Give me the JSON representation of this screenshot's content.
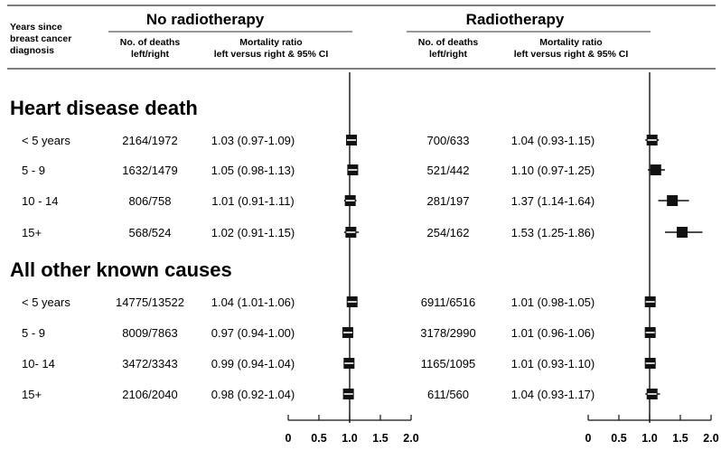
{
  "header": {
    "row_header": [
      "Years since",
      "breast cancer",
      "diagnosis"
    ],
    "left_group": "No radiotherapy",
    "right_group": "Radiotherapy",
    "deaths_header": [
      "No. of deaths",
      "left/right"
    ],
    "ratio_header": [
      "Mortality ratio",
      "left versus right & 95% CI"
    ]
  },
  "chart_data": {
    "type": "forest",
    "x_ticks": [
      "0",
      "0.5",
      "1.0",
      "1.5",
      "2.0"
    ],
    "xlim": [
      0,
      2.0
    ],
    "reference_line": 1.0,
    "sections": [
      {
        "title": "Heart disease death",
        "rows": [
          {
            "label": "< 5 years",
            "none": {
              "deaths": "2164/1972",
              "ratio_text": "1.03 (0.97-1.09)",
              "ratio": 1.03,
              "lo": 0.97,
              "hi": 1.09
            },
            "rt": {
              "deaths": "700/633",
              "ratio_text": "1.04 (0.93-1.15)",
              "ratio": 1.04,
              "lo": 0.93,
              "hi": 1.15
            }
          },
          {
            "label": "5 - 9",
            "none": {
              "deaths": "1632/1479",
              "ratio_text": "1.05 (0.98-1.13)",
              "ratio": 1.05,
              "lo": 0.98,
              "hi": 1.13
            },
            "rt": {
              "deaths": "521/442",
              "ratio_text": "1.10 (0.97-1.25)",
              "ratio": 1.1,
              "lo": 0.97,
              "hi": 1.25
            }
          },
          {
            "label": "10 - 14",
            "none": {
              "deaths": "806/758",
              "ratio_text": "1.01 (0.91-1.11)",
              "ratio": 1.01,
              "lo": 0.91,
              "hi": 1.11
            },
            "rt": {
              "deaths": "281/197",
              "ratio_text": "1.37 (1.14-1.64)",
              "ratio": 1.37,
              "lo": 1.14,
              "hi": 1.64
            }
          },
          {
            "label": "15+",
            "none": {
              "deaths": "568/524",
              "ratio_text": "1.02 (0.91-1.15)",
              "ratio": 1.02,
              "lo": 0.91,
              "hi": 1.15
            },
            "rt": {
              "deaths": "254/162",
              "ratio_text": "1.53 (1.25-1.86)",
              "ratio": 1.53,
              "lo": 1.25,
              "hi": 1.86
            }
          }
        ]
      },
      {
        "title": "All other known causes",
        "rows": [
          {
            "label": "< 5 years",
            "none": {
              "deaths": "14775/13522",
              "ratio_text": "1.04 (1.01-1.06)",
              "ratio": 1.04,
              "lo": 1.01,
              "hi": 1.06
            },
            "rt": {
              "deaths": "6911/6516",
              "ratio_text": "1.01 (0.98-1.05)",
              "ratio": 1.01,
              "lo": 0.98,
              "hi": 1.05
            }
          },
          {
            "label": "5 - 9",
            "none": {
              "deaths": "8009/7863",
              "ratio_text": "0.97 (0.94-1.00)",
              "ratio": 0.97,
              "lo": 0.94,
              "hi": 1.0
            },
            "rt": {
              "deaths": "3178/2990",
              "ratio_text": "1.01 (0.96-1.06)",
              "ratio": 1.01,
              "lo": 0.96,
              "hi": 1.06
            }
          },
          {
            "label": "10- 14",
            "none": {
              "deaths": "3472/3343",
              "ratio_text": "0.99 (0.94-1.04)",
              "ratio": 0.99,
              "lo": 0.94,
              "hi": 1.04
            },
            "rt": {
              "deaths": "1165/1095",
              "ratio_text": "1.01 (0.93-1.10)",
              "ratio": 1.01,
              "lo": 0.93,
              "hi": 1.1
            }
          },
          {
            "label": "15+",
            "none": {
              "deaths": "2106/2040",
              "ratio_text": "0.98 (0.92-1.04)",
              "ratio": 0.98,
              "lo": 0.92,
              "hi": 1.04
            },
            "rt": {
              "deaths": "611/560",
              "ratio_text": "1.04 (0.93-1.17)",
              "ratio": 1.04,
              "lo": 0.93,
              "hi": 1.17
            }
          }
        ]
      }
    ]
  },
  "colors": {
    "ink": "#111111",
    "rule": "#333333"
  }
}
